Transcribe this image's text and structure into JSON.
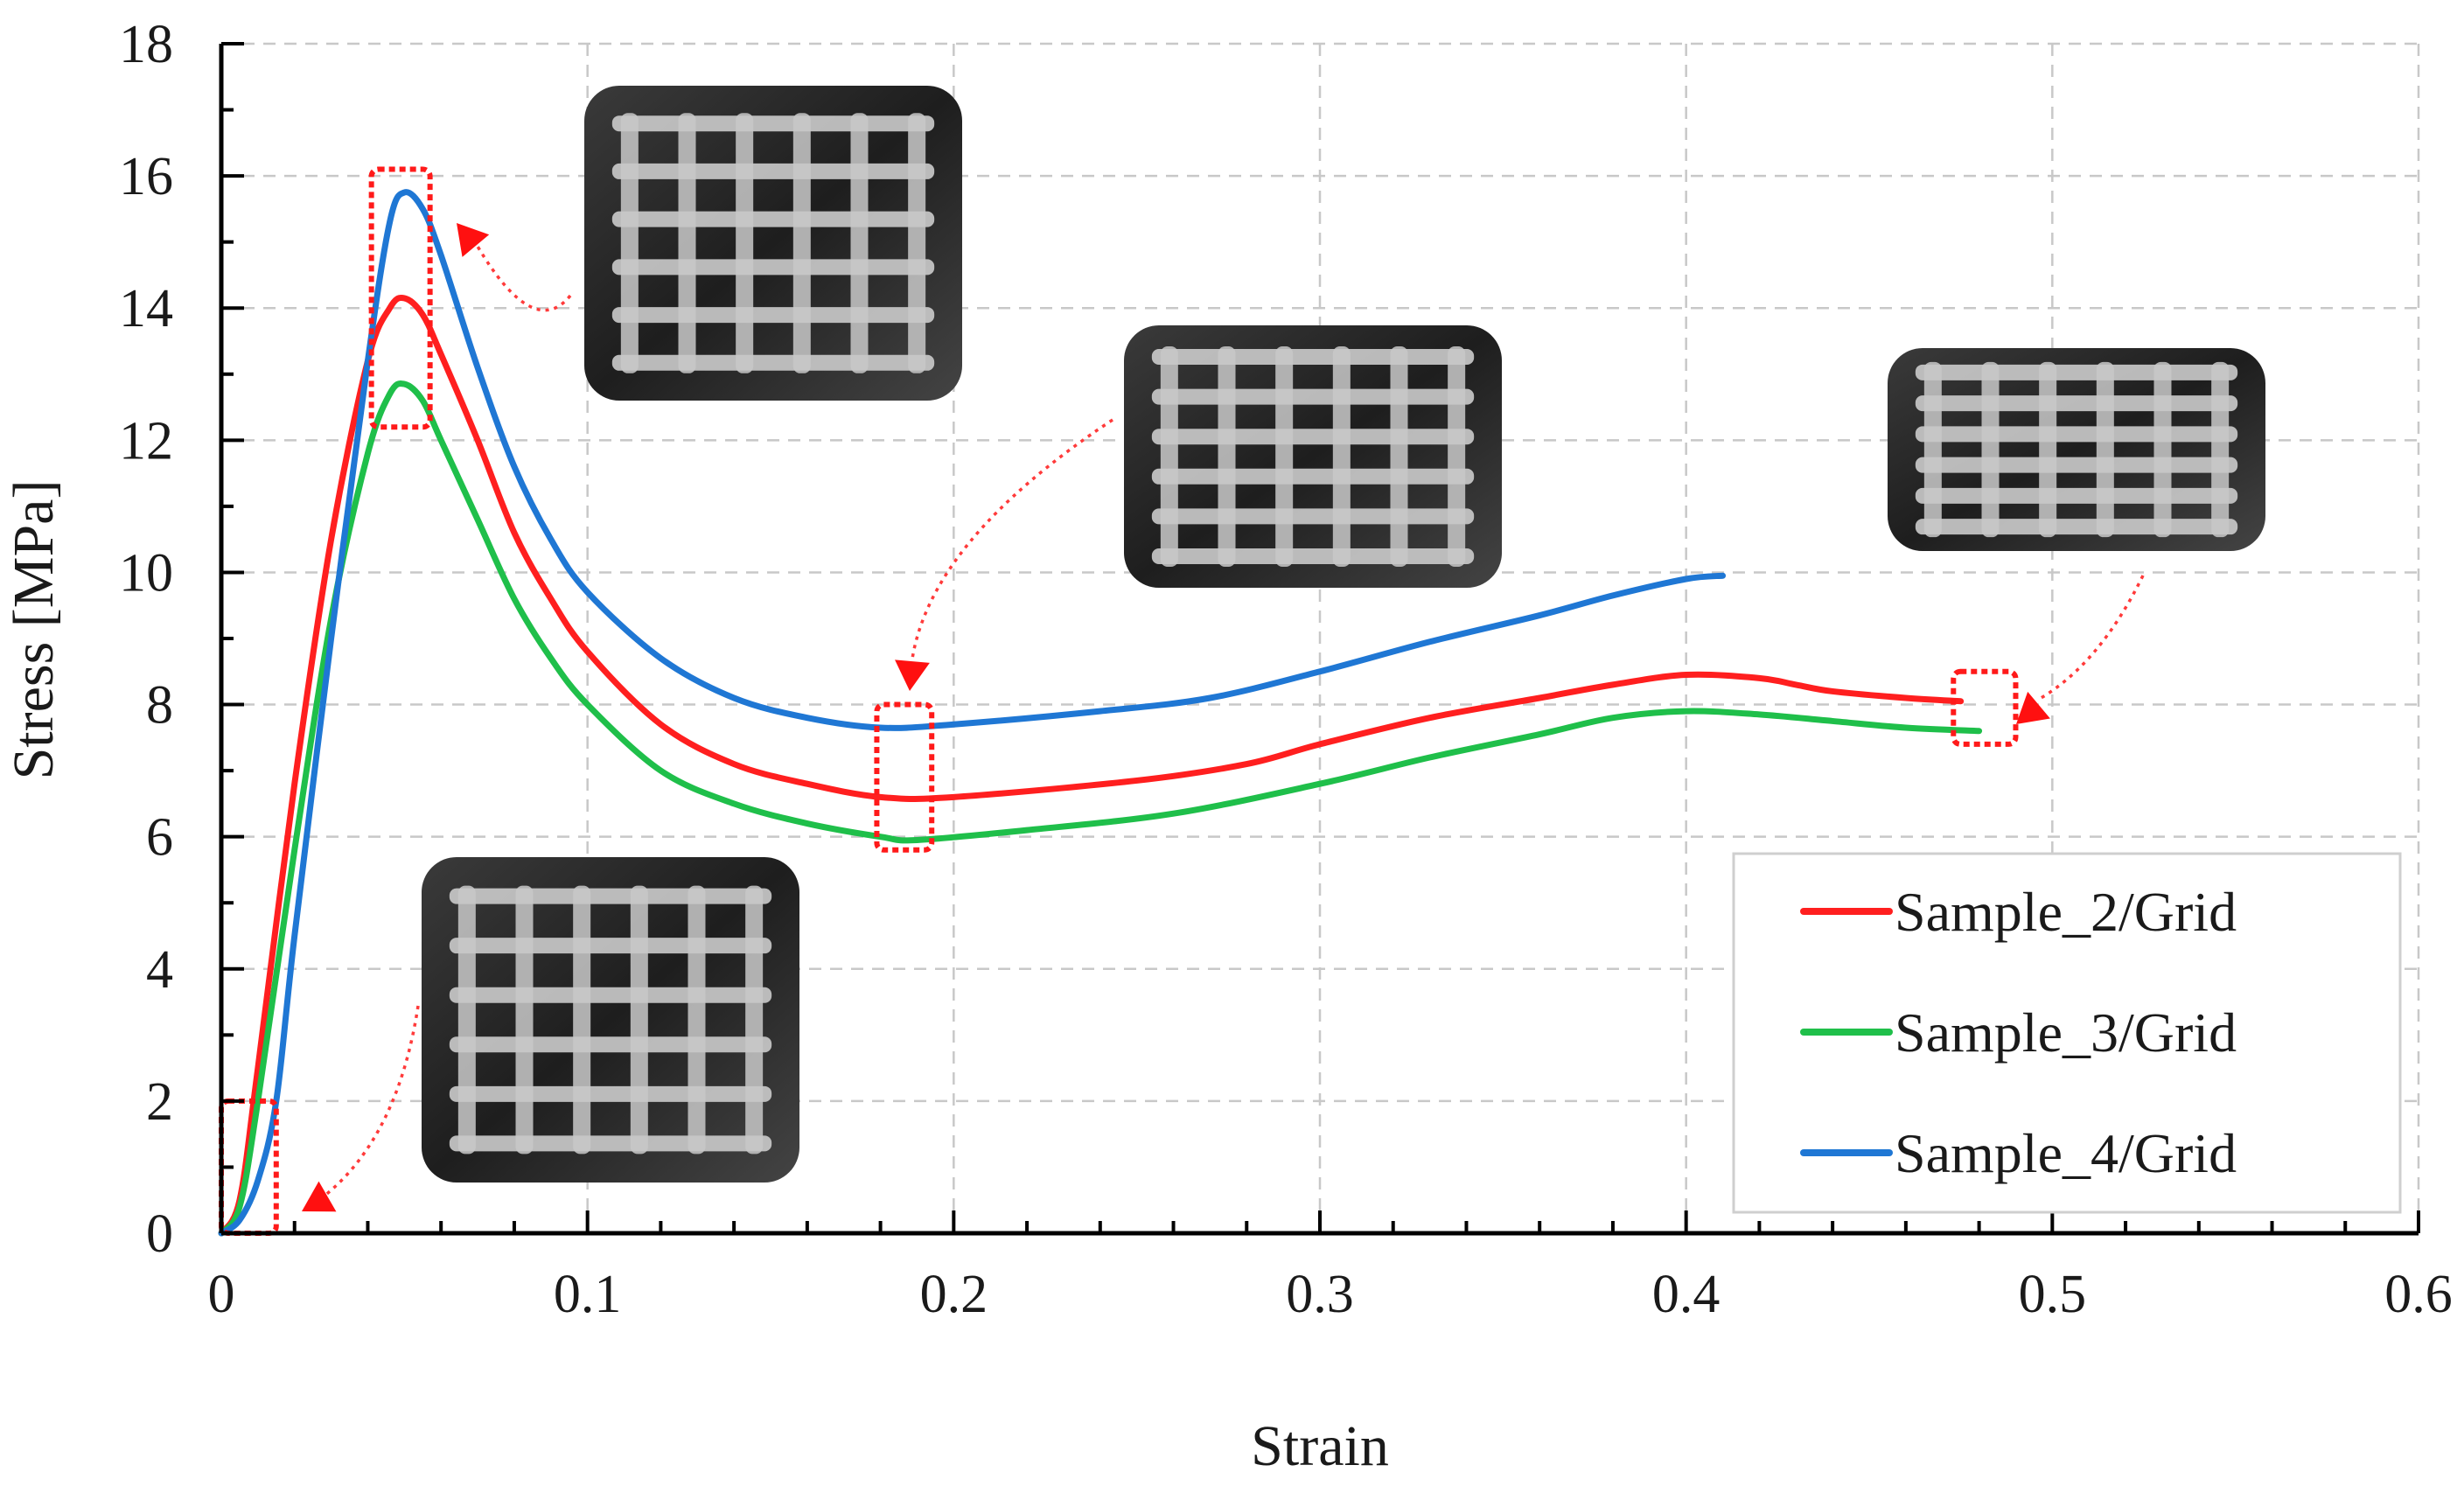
{
  "chart_data": {
    "type": "line",
    "title": "",
    "xlabel": "Strain",
    "ylabel": "Stress [MPa]",
    "xlim": [
      0,
      0.6
    ],
    "ylim": [
      0,
      18
    ],
    "x_ticks": [
      "0",
      "0.1",
      "0.2",
      "0.3",
      "0.4",
      "0.5",
      "0.6"
    ],
    "y_ticks": [
      "0",
      "2",
      "4",
      "6",
      "8",
      "10",
      "12",
      "14",
      "16",
      "18"
    ],
    "grid": true,
    "legend_position": "bottom-right",
    "series": [
      {
        "name": "Sample_2/Grid",
        "color": "#ff1f1f",
        "points": [
          [
            0,
            0
          ],
          [
            0.005,
            0.5
          ],
          [
            0.01,
            2.5
          ],
          [
            0.02,
            6.8
          ],
          [
            0.03,
            10.5
          ],
          [
            0.04,
            13.2
          ],
          [
            0.046,
            14.0
          ],
          [
            0.05,
            14.15
          ],
          [
            0.055,
            13.9
          ],
          [
            0.06,
            13.3
          ],
          [
            0.07,
            12.0
          ],
          [
            0.08,
            10.6
          ],
          [
            0.09,
            9.6
          ],
          [
            0.1,
            8.8
          ],
          [
            0.12,
            7.7
          ],
          [
            0.14,
            7.1
          ],
          [
            0.16,
            6.8
          ],
          [
            0.18,
            6.6
          ],
          [
            0.2,
            6.6
          ],
          [
            0.25,
            6.85
          ],
          [
            0.28,
            7.1
          ],
          [
            0.3,
            7.4
          ],
          [
            0.33,
            7.8
          ],
          [
            0.36,
            8.1
          ],
          [
            0.38,
            8.3
          ],
          [
            0.4,
            8.45
          ],
          [
            0.42,
            8.4
          ],
          [
            0.43,
            8.3
          ],
          [
            0.44,
            8.2
          ],
          [
            0.46,
            8.1
          ],
          [
            0.475,
            8.05
          ]
        ]
      },
      {
        "name": "Sample_3/Grid",
        "color": "#1fbf4a",
        "points": [
          [
            0,
            0
          ],
          [
            0.005,
            0.4
          ],
          [
            0.01,
            2.0
          ],
          [
            0.02,
            5.8
          ],
          [
            0.03,
            9.3
          ],
          [
            0.04,
            11.8
          ],
          [
            0.046,
            12.7
          ],
          [
            0.05,
            12.85
          ],
          [
            0.055,
            12.6
          ],
          [
            0.06,
            12.0
          ],
          [
            0.07,
            10.8
          ],
          [
            0.08,
            9.6
          ],
          [
            0.09,
            8.7
          ],
          [
            0.1,
            8.0
          ],
          [
            0.12,
            7.0
          ],
          [
            0.14,
            6.5
          ],
          [
            0.16,
            6.2
          ],
          [
            0.18,
            6.0
          ],
          [
            0.19,
            5.95
          ],
          [
            0.22,
            6.1
          ],
          [
            0.26,
            6.35
          ],
          [
            0.3,
            6.8
          ],
          [
            0.33,
            7.2
          ],
          [
            0.36,
            7.55
          ],
          [
            0.38,
            7.8
          ],
          [
            0.4,
            7.9
          ],
          [
            0.42,
            7.85
          ],
          [
            0.44,
            7.75
          ],
          [
            0.46,
            7.65
          ],
          [
            0.48,
            7.6
          ]
        ]
      },
      {
        "name": "Sample_4/Grid",
        "color": "#1f77d4",
        "points": [
          [
            0,
            0
          ],
          [
            0.005,
            0.2
          ],
          [
            0.01,
            0.8
          ],
          [
            0.015,
            2.0
          ],
          [
            0.02,
            4.5
          ],
          [
            0.03,
            9.0
          ],
          [
            0.04,
            13.2
          ],
          [
            0.046,
            15.3
          ],
          [
            0.05,
            15.75
          ],
          [
            0.055,
            15.5
          ],
          [
            0.06,
            14.8
          ],
          [
            0.07,
            13.1
          ],
          [
            0.08,
            11.6
          ],
          [
            0.09,
            10.5
          ],
          [
            0.1,
            9.7
          ],
          [
            0.12,
            8.7
          ],
          [
            0.14,
            8.1
          ],
          [
            0.16,
            7.8
          ],
          [
            0.18,
            7.65
          ],
          [
            0.2,
            7.7
          ],
          [
            0.24,
            7.9
          ],
          [
            0.27,
            8.1
          ],
          [
            0.3,
            8.5
          ],
          [
            0.33,
            8.95
          ],
          [
            0.36,
            9.35
          ],
          [
            0.38,
            9.65
          ],
          [
            0.4,
            9.9
          ],
          [
            0.41,
            9.95
          ]
        ]
      }
    ],
    "highlight_regions": [
      {
        "x": [
          0,
          0.015
        ],
        "y": [
          0,
          2
        ]
      },
      {
        "x": [
          0.041,
          0.057
        ],
        "y": [
          12.2,
          16.1
        ]
      },
      {
        "x": [
          0.179,
          0.194
        ],
        "y": [
          5.8,
          8.0
        ]
      },
      {
        "x": [
          0.473,
          0.49
        ],
        "y": [
          7.4,
          8.5
        ]
      }
    ]
  }
}
